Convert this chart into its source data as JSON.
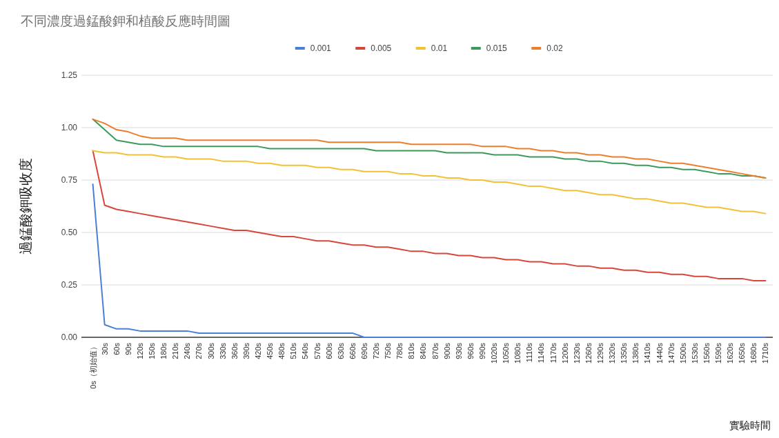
{
  "chart_data": {
    "type": "line",
    "title": "不同濃度過錳酸鉀和植酸反應時間圖",
    "xlabel": "實驗時間",
    "ylabel": "過錳酸鉀吸收度",
    "categories": [
      "0s（初始值）",
      "30s",
      "60s",
      "90s",
      "120s",
      "150s",
      "180s",
      "210s",
      "240s",
      "270s",
      "300s",
      "330s",
      "360s",
      "390s",
      "420s",
      "450s",
      "480s",
      "510s",
      "540s",
      "570s",
      "600s",
      "630s",
      "660s",
      "690s",
      "720s",
      "750s",
      "780s",
      "810s",
      "840s",
      "870s",
      "900s",
      "930s",
      "960s",
      "990s",
      "1020s",
      "1050s",
      "1080s",
      "1110s",
      "1140s",
      "1170s",
      "1200s",
      "1230s",
      "1260s",
      "1290s",
      "1320s",
      "1350s",
      "1380s",
      "1410s",
      "1440s",
      "1470s",
      "1500s",
      "1530s",
      "1560s",
      "1590s",
      "1620s",
      "1650s",
      "1680s",
      "1710s"
    ],
    "series": [
      {
        "name": "0.001",
        "color": "#4a7fd8",
        "values": [
          0.73,
          0.06,
          0.04,
          0.04,
          0.03,
          0.03,
          0.03,
          0.03,
          0.03,
          0.02,
          0.02,
          0.02,
          0.02,
          0.02,
          0.02,
          0.02,
          0.02,
          0.02,
          0.02,
          0.02,
          0.02,
          0.02,
          0.02,
          0,
          0,
          0,
          0,
          0,
          0,
          0,
          0,
          0,
          0,
          0,
          0,
          0,
          0,
          0,
          0,
          0,
          0,
          0,
          0,
          0,
          0,
          0,
          0,
          0,
          0,
          0,
          0,
          0,
          0,
          0,
          0,
          0,
          0,
          0
        ]
      },
      {
        "name": "0.005",
        "color": "#d8453b",
        "values": [
          0.89,
          0.63,
          0.61,
          0.6,
          0.59,
          0.58,
          0.57,
          0.56,
          0.55,
          0.54,
          0.53,
          0.52,
          0.51,
          0.51,
          0.5,
          0.49,
          0.48,
          0.48,
          0.47,
          0.46,
          0.46,
          0.45,
          0.44,
          0.44,
          0.43,
          0.43,
          0.42,
          0.41,
          0.41,
          0.4,
          0.4,
          0.39,
          0.39,
          0.38,
          0.38,
          0.37,
          0.37,
          0.36,
          0.36,
          0.35,
          0.35,
          0.34,
          0.34,
          0.33,
          0.33,
          0.32,
          0.32,
          0.31,
          0.31,
          0.3,
          0.3,
          0.29,
          0.29,
          0.28,
          0.28,
          0.28,
          0.27,
          0.27
        ]
      },
      {
        "name": "0.01",
        "color": "#f2c232",
        "values": [
          0.89,
          0.88,
          0.88,
          0.87,
          0.87,
          0.87,
          0.86,
          0.86,
          0.85,
          0.85,
          0.85,
          0.84,
          0.84,
          0.84,
          0.83,
          0.83,
          0.82,
          0.82,
          0.82,
          0.81,
          0.81,
          0.8,
          0.8,
          0.79,
          0.79,
          0.79,
          0.78,
          0.78,
          0.77,
          0.77,
          0.76,
          0.76,
          0.75,
          0.75,
          0.74,
          0.74,
          0.73,
          0.72,
          0.72,
          0.71,
          0.7,
          0.7,
          0.69,
          0.68,
          0.68,
          0.67,
          0.66,
          0.66,
          0.65,
          0.64,
          0.64,
          0.63,
          0.62,
          0.62,
          0.61,
          0.6,
          0.6,
          0.59
        ]
      },
      {
        "name": "0.015",
        "color": "#3a9a5b",
        "values": [
          1.04,
          0.99,
          0.94,
          0.93,
          0.92,
          0.92,
          0.91,
          0.91,
          0.91,
          0.91,
          0.91,
          0.91,
          0.91,
          0.91,
          0.91,
          0.9,
          0.9,
          0.9,
          0.9,
          0.9,
          0.9,
          0.9,
          0.9,
          0.9,
          0.89,
          0.89,
          0.89,
          0.89,
          0.89,
          0.89,
          0.88,
          0.88,
          0.88,
          0.88,
          0.87,
          0.87,
          0.87,
          0.86,
          0.86,
          0.86,
          0.85,
          0.85,
          0.84,
          0.84,
          0.83,
          0.83,
          0.82,
          0.82,
          0.81,
          0.81,
          0.8,
          0.8,
          0.79,
          0.78,
          0.78,
          0.77,
          0.77,
          0.76
        ]
      },
      {
        "name": "0.02",
        "color": "#ee7d2b",
        "values": [
          1.04,
          1.02,
          0.99,
          0.98,
          0.96,
          0.95,
          0.95,
          0.95,
          0.94,
          0.94,
          0.94,
          0.94,
          0.94,
          0.94,
          0.94,
          0.94,
          0.94,
          0.94,
          0.94,
          0.94,
          0.93,
          0.93,
          0.93,
          0.93,
          0.93,
          0.93,
          0.93,
          0.92,
          0.92,
          0.92,
          0.92,
          0.92,
          0.92,
          0.91,
          0.91,
          0.91,
          0.9,
          0.9,
          0.89,
          0.89,
          0.88,
          0.88,
          0.87,
          0.87,
          0.86,
          0.86,
          0.85,
          0.85,
          0.84,
          0.83,
          0.83,
          0.82,
          0.81,
          0.8,
          0.79,
          0.78,
          0.77,
          0.76
        ]
      }
    ],
    "ylim": [
      0,
      1.25
    ],
    "yticks": [
      {
        "value": 0,
        "label": "0.00"
      },
      {
        "value": 0.25,
        "label": "0.25"
      },
      {
        "value": 0.5,
        "label": "0.50"
      },
      {
        "value": 0.75,
        "label": "0.75"
      },
      {
        "value": 1,
        "label": "1.00"
      },
      {
        "value": 1.25,
        "label": "1.25"
      }
    ],
    "grid": "y",
    "legend": "top"
  }
}
